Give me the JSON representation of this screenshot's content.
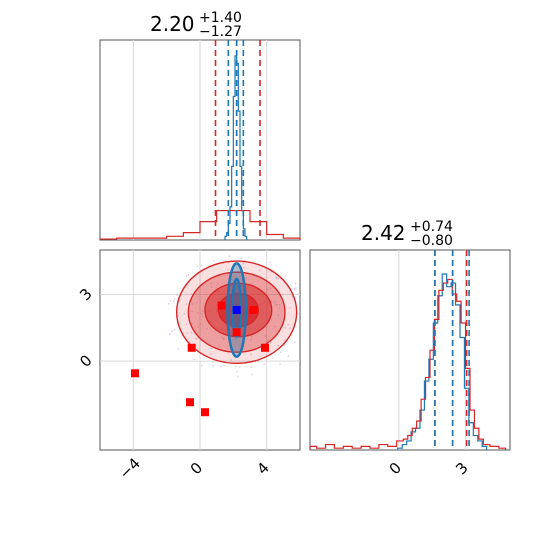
{
  "chart_data": [
    {
      "type": "histogram",
      "panel": "param1-marginal",
      "title_value": "2.20",
      "title_plus": "+1.40",
      "title_minus": "−1.27",
      "xlim": [
        -6,
        6
      ],
      "grid": true,
      "quantile_lines_blue": [
        1.7,
        2.2,
        2.6
      ],
      "quantile_lines_red": [
        0.93,
        2.2,
        3.6
      ],
      "series": [
        {
          "color": "#1f77b4",
          "bin_centers": [
            1.55,
            1.65,
            1.75,
            1.85,
            1.95,
            2.05,
            2.15,
            2.25,
            2.35,
            2.45,
            2.55,
            2.65,
            2.75
          ],
          "counts": [
            2,
            4,
            9,
            18,
            40,
            78,
            100,
            96,
            70,
            40,
            16,
            6,
            2
          ]
        },
        {
          "color": "#d62728",
          "bin_centers": [
            -5.5,
            -4.5,
            -3.5,
            -2.5,
            -1.5,
            -0.5,
            0.5,
            1.5,
            2.5,
            3.5,
            4.5,
            5.5
          ],
          "counts": [
            0.5,
            1,
            1,
            1,
            2,
            4,
            10,
            16,
            16,
            10,
            3,
            1
          ]
        }
      ]
    },
    {
      "type": "contour-scatter",
      "panel": "joint",
      "xlim": [
        -6,
        6
      ],
      "ylim": [
        -4,
        5
      ],
      "xticks": [
        "−4",
        "0",
        "4"
      ],
      "yticks": [
        "0",
        "3"
      ],
      "grid": true,
      "red_markers": [
        [
          -3.9,
          -0.55
        ],
        [
          -0.5,
          0.6
        ],
        [
          -0.6,
          -1.85
        ],
        [
          0.3,
          -2.3
        ],
        [
          1.3,
          2.5
        ],
        [
          2.2,
          1.3
        ],
        [
          3.2,
          2.3
        ],
        [
          3.9,
          0.6
        ]
      ],
      "blue_marker": [
        2.2,
        2.3
      ],
      "contours_red": [
        {
          "cx": 2.2,
          "cy": 2.2,
          "rx": 3.6,
          "ry": 2.3,
          "opacity": 0.15
        },
        {
          "cx": 2.2,
          "cy": 2.2,
          "rx": 2.9,
          "ry": 1.8,
          "opacity": 0.35
        },
        {
          "cx": 2.3,
          "cy": 2.3,
          "rx": 2.0,
          "ry": 1.2,
          "opacity": 0.55
        },
        {
          "cx": 2.3,
          "cy": 2.3,
          "rx": 1.2,
          "ry": 0.75,
          "opacity": 0.8
        }
      ],
      "contours_blue": [
        {
          "cx": 2.2,
          "cy": 2.3,
          "rx": 0.55,
          "ry": 2.1
        },
        {
          "cx": 2.2,
          "cy": 2.4,
          "rx": 0.25,
          "ry": 1.3
        }
      ]
    },
    {
      "type": "histogram",
      "panel": "param2-marginal",
      "title_value": "2.42",
      "title_plus": "+0.74",
      "title_minus": "−0.80",
      "xlim": [
        -4,
        5
      ],
      "xticks": [
        "0",
        "3"
      ],
      "grid": true,
      "quantile_lines_blue": [
        1.62,
        2.42,
        3.16
      ],
      "quantile_lines_red": [
        1.62,
        2.42,
        3.05
      ],
      "series": [
        {
          "color": "#1f77b4",
          "bin_centers": [
            0.05,
            0.25,
            0.45,
            0.65,
            0.85,
            1.05,
            1.25,
            1.45,
            1.65,
            1.85,
            2.05,
            2.25,
            2.45,
            2.65,
            2.85,
            3.05,
            3.25,
            3.45,
            3.65,
            3.85
          ],
          "counts": [
            1,
            3,
            5,
            10,
            12,
            22,
            38,
            50,
            70,
            85,
            97,
            90,
            92,
            80,
            62,
            34,
            15,
            8,
            5,
            2
          ]
        },
        {
          "color": "#d62728",
          "bin_centers": [
            -3.9,
            -3.5,
            -3.1,
            -2.7,
            -2.3,
            -1.9,
            -1.5,
            -1.1,
            -0.7,
            -0.3,
            0.1,
            0.3,
            0.5,
            0.7,
            0.9,
            1.1,
            1.3,
            1.5,
            1.7,
            1.9,
            2.1,
            2.3,
            2.5,
            2.7,
            2.9,
            3.1,
            3.3,
            3.5,
            3.7,
            3.9,
            4.3,
            4.7
          ],
          "counts": [
            2,
            1,
            3,
            1,
            2,
            1,
            2,
            1,
            3,
            2,
            5,
            6,
            8,
            12,
            16,
            28,
            40,
            55,
            72,
            88,
            92,
            94,
            86,
            82,
            70,
            45,
            22,
            12,
            6,
            3,
            2,
            1
          ]
        }
      ]
    }
  ]
}
